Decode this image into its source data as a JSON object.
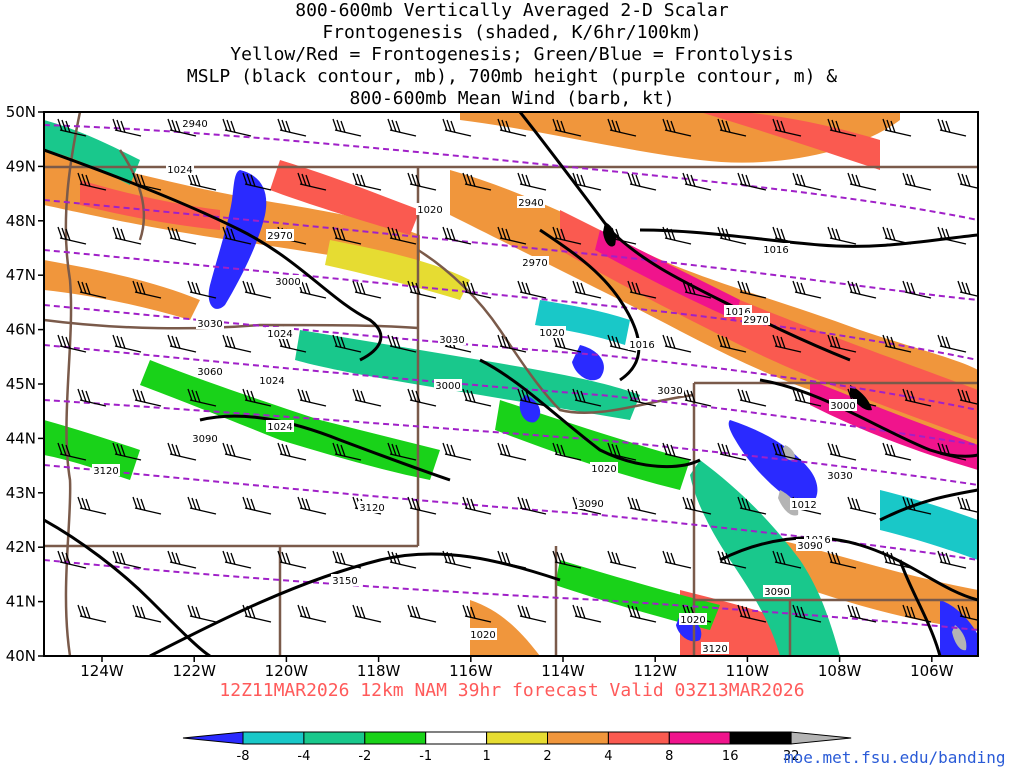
{
  "title_lines": [
    "800-600mb Vertically Averaged 2-D Scalar",
    "Frontogenesis (shaded, K/6hr/100km)",
    "Yellow/Red = Frontogenesis;  Green/Blue = Frontolysis",
    "MSLP (black contour, mb), 700mb height (purple contour, m) &",
    "800-600mb Mean Wind (barb, kt)"
  ],
  "lat_labels": [
    "50N",
    "49N",
    "48N",
    "47N",
    "46N",
    "45N",
    "44N",
    "43N",
    "42N",
    "41N",
    "40N"
  ],
  "lon_labels": [
    "124W",
    "122W",
    "120W",
    "118W",
    "116W",
    "114W",
    "112W",
    "110W",
    "108W",
    "106W"
  ],
  "footer": "12Z11MAR2026 12km NAM 39hr forecast Valid 03Z13MAR2026",
  "credit": "moe.met.fsu.edu/banding",
  "colorbar": {
    "labels": [
      "-8",
      "-4",
      "-2",
      "-1",
      "1",
      "2",
      "4",
      "8",
      "16",
      "32"
    ],
    "colors": [
      "#2a2aff",
      "#19c8c8",
      "#19c88c",
      "#19d219",
      "#ffffff",
      "#e6dc32",
      "#f0963c",
      "#fa5a50",
      "#f0148c",
      "#000000",
      "#b4b4b4"
    ]
  },
  "mslp_labels": [
    "1024",
    "1024",
    "1024",
    "1024",
    "1020",
    "1020",
    "1020",
    "1020",
    "1020",
    "1016",
    "1016",
    "1016",
    "1016",
    "1012"
  ],
  "height_labels": [
    "2940",
    "2940",
    "2970",
    "2970",
    "2970",
    "3000",
    "3000",
    "3000",
    "3030",
    "3030",
    "3030",
    "3030",
    "3060",
    "3090",
    "3090",
    "3090",
    "3090",
    "3120",
    "3120",
    "3120",
    "3150"
  ]
}
